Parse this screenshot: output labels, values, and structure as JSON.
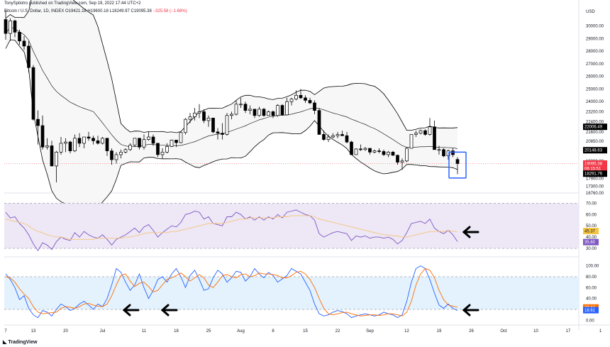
{
  "header": {
    "published": "TonySpilotro published on TradingView.com, Sep 19, 2022 17:44 UTC+2",
    "symbol": "Bitcoin / U.S. Dollar, 1D, INDEX",
    "open": "O19421.18",
    "high": "H19600.18",
    "low": "L18249.97",
    "close": "C19095.38",
    "change": "−325.58 (−1.68%)"
  },
  "footer": {
    "brand": "TradingView"
  },
  "colors": {
    "candle": "#000000",
    "band_fill": "#f7f7f7",
    "rsi_bg": "#ede7f6",
    "rsi_line": "#7e57c2",
    "rsi_ma": "#f5c57a",
    "stoch_bg": "#e3f2fd",
    "stoch_k": "#2962ff",
    "stoch_d": "#ff6d00",
    "highlight_box": "#2962ff",
    "price_label_red": "#f23645"
  },
  "chart_data": [
    {
      "type": "candlestick",
      "title": "Bitcoin / U.S. Dollar, 1D, INDEX",
      "y_axis_label": "USD",
      "y_ticks": [
        30000.0,
        29000.0,
        28000.0,
        27000.0,
        26000.0,
        25000.0,
        24000.0,
        23200.0,
        22400.0,
        21600.0,
        20850.0,
        20100.0,
        19300.0,
        18600.0,
        17900.0,
        17300.0,
        16760.0
      ],
      "ylim": [
        16760,
        31600
      ],
      "x_ticks": [
        "7",
        "13",
        "20",
        "Jul",
        "11",
        "18",
        "25",
        "Aug",
        "8",
        "15",
        "22",
        "Sep",
        "12",
        "19",
        "26",
        "Oct",
        "10",
        "17",
        "1"
      ],
      "price_labels": {
        "upper_band": "22006.49",
        "middle_band": "20148.63",
        "last": "19095.38",
        "countdown": "06:15:51",
        "lower_band": "18291.76"
      },
      "ohlc_daily_approx": [
        [
          30500,
          31200,
          28900,
          29400
        ],
        [
          29400,
          30600,
          28800,
          30400
        ],
        [
          30400,
          30500,
          29100,
          29500
        ],
        [
          29500,
          29700,
          28500,
          28800
        ],
        [
          28800,
          29200,
          28100,
          28400
        ],
        [
          28400,
          28800,
          26300,
          26700
        ],
        [
          26700,
          26900,
          22500,
          22600
        ],
        [
          22600,
          23300,
          20600,
          22100
        ],
        [
          22100,
          22900,
          20200,
          20400
        ],
        [
          20400,
          21100,
          20200,
          20500
        ],
        [
          20500,
          20900,
          18900,
          18900
        ],
        [
          18900,
          20100,
          17600,
          20000
        ],
        [
          20000,
          21200,
          19800,
          20700
        ],
        [
          20700,
          21100,
          20000,
          20800
        ],
        [
          20800,
          20900,
          19900,
          20100
        ],
        [
          20100,
          21400,
          20000,
          21100
        ],
        [
          21100,
          21500,
          20400,
          20700
        ],
        [
          20700,
          21200,
          20300,
          21200
        ],
        [
          21200,
          21600,
          20900,
          21100
        ],
        [
          21100,
          21300,
          20600,
          20900
        ],
        [
          20900,
          21300,
          20600,
          20700
        ],
        [
          20700,
          21200,
          20600,
          21100
        ],
        [
          21100,
          20900,
          19700,
          20100
        ],
        [
          20100,
          20300,
          19000,
          19400
        ],
        [
          19400,
          20000,
          19100,
          19800
        ],
        [
          19800,
          20200,
          19500,
          20000
        ],
        [
          20000,
          20300,
          19900,
          20200
        ],
        [
          20200,
          20700,
          20100,
          20550
        ],
        [
          20550,
          21100,
          20400,
          21100
        ],
        [
          21100,
          21100,
          20200,
          20400
        ],
        [
          20400,
          21400,
          20200,
          21000
        ],
        [
          21000,
          21600,
          20900,
          21200
        ],
        [
          21200,
          21400,
          20500,
          20700
        ],
        [
          20700,
          20700,
          19600,
          19800
        ],
        [
          19800,
          20300,
          19500,
          20000
        ],
        [
          20000,
          20700,
          19900,
          20450
        ],
        [
          20450,
          21000,
          20400,
          20950
        ],
        [
          20950,
          20900,
          20400,
          20750
        ],
        [
          20750,
          21600,
          20700,
          21550
        ],
        [
          21550,
          22700,
          21400,
          22600
        ],
        [
          22600,
          23100,
          22300,
          22800
        ],
        [
          22800,
          23500,
          22500,
          23100
        ],
        [
          23100,
          23800,
          22700,
          23200
        ],
        [
          23200,
          23400,
          22300,
          22500
        ],
        [
          22500,
          22900,
          22000,
          22700
        ],
        [
          22700,
          22700,
          21500,
          21600
        ],
        [
          21600,
          21900,
          21000,
          21500
        ],
        [
          21500,
          22300,
          21000,
          21400
        ],
        [
          21400,
          23100,
          21300,
          22900
        ],
        [
          22900,
          23200,
          22600,
          23000
        ],
        [
          23000,
          24100,
          22900,
          23800
        ],
        [
          23800,
          24300,
          23500,
          23800
        ],
        [
          23800,
          24000,
          23100,
          23300
        ],
        [
          23300,
          23700,
          23000,
          23400
        ],
        [
          23400,
          23400,
          22700,
          22900
        ],
        [
          22900,
          23600,
          22800,
          23400
        ],
        [
          23400,
          23500,
          22800,
          22900
        ],
        [
          22900,
          23300,
          22900,
          23200
        ],
        [
          23200,
          23300,
          22700,
          22900
        ],
        [
          22900,
          23800,
          22800,
          23700
        ],
        [
          23700,
          23800,
          22900,
          22950
        ],
        [
          22950,
          24300,
          22900,
          24000
        ],
        [
          24000,
          24300,
          23700,
          24200
        ],
        [
          24200,
          24900,
          24100,
          24500
        ],
        [
          24500,
          25000,
          24200,
          24300
        ],
        [
          24300,
          24500,
          23900,
          24100
        ],
        [
          24100,
          24300,
          23800,
          23900
        ],
        [
          23900,
          24100,
          23000,
          23300
        ],
        [
          23300,
          23500,
          21500,
          21400
        ],
        [
          21400,
          21700,
          20900,
          21000
        ],
        [
          21000,
          21400,
          20800,
          21200
        ],
        [
          21200,
          21500,
          21100,
          21300
        ],
        [
          21300,
          21600,
          21100,
          21400
        ],
        [
          21400,
          21700,
          21300,
          21300
        ],
        [
          21300,
          21600,
          20700,
          20800
        ],
        [
          20800,
          20900,
          19800,
          19800
        ],
        [
          19800,
          20300,
          19800,
          20250
        ],
        [
          20250,
          20600,
          20100,
          20200
        ],
        [
          20200,
          20400,
          20100,
          20300
        ],
        [
          20300,
          20300,
          19800,
          20000
        ],
        [
          20000,
          20200,
          19900,
          20100
        ],
        [
          20100,
          20300,
          19900,
          20050
        ],
        [
          20050,
          20200,
          19700,
          19800
        ],
        [
          19800,
          20100,
          19600,
          20000
        ],
        [
          20000,
          20100,
          19700,
          19750
        ],
        [
          19750,
          19800,
          19000,
          19200
        ],
        [
          19200,
          19500,
          18600,
          19300
        ],
        [
          19300,
          20400,
          19200,
          20300
        ],
        [
          20300,
          21400,
          20300,
          21400
        ],
        [
          21400,
          21700,
          21200,
          21500
        ],
        [
          21500,
          21800,
          21400,
          21700
        ],
        [
          21700,
          21800,
          21300,
          21400
        ],
        [
          21400,
          22700,
          21300,
          22000
        ],
        [
          22000,
          22500,
          20600,
          20200
        ],
        [
          20200,
          20500,
          19800,
          20200
        ],
        [
          20200,
          20300,
          19600,
          19700
        ],
        [
          19700,
          20200,
          19400,
          20100
        ],
        [
          20100,
          20300,
          19600,
          19800
        ],
        [
          19421,
          19600,
          18250,
          19095
        ]
      ]
    },
    {
      "type": "line",
      "title": "RSI",
      "y_ticks": [
        70.0,
        60.0,
        50.0,
        40.0,
        30.0
      ],
      "ylim": [
        25,
        74
      ],
      "labels": {
        "ma": "45.37",
        "rsi": "35.60"
      },
      "series": [
        {
          "values": [
            62,
            57,
            58,
            52,
            48,
            42,
            34,
            28,
            35,
            33,
            29,
            36,
            40,
            38,
            37,
            44,
            40,
            45,
            42,
            40,
            39,
            42,
            38,
            33,
            38,
            40,
            42,
            45,
            48,
            44,
            49,
            51,
            46,
            40,
            44,
            47,
            50,
            49,
            53,
            60,
            61,
            63,
            62,
            56,
            58,
            52,
            51,
            50,
            58,
            58,
            62,
            60,
            56,
            58,
            55,
            58,
            55,
            58,
            56,
            60,
            57,
            62,
            63,
            64,
            62,
            60,
            59,
            55,
            43,
            40,
            42,
            44,
            45,
            44,
            43,
            37,
            41,
            40,
            41,
            39,
            40,
            40,
            39,
            40,
            38,
            34,
            37,
            44,
            52,
            53,
            54,
            52,
            56,
            48,
            45,
            43,
            46,
            42,
            36
          ]
        },
        {
          "values": [
            56,
            55,
            54,
            53,
            52,
            50,
            47,
            45,
            44,
            42,
            41,
            40,
            40,
            39,
            38,
            38,
            38,
            38,
            38,
            38,
            39,
            39,
            39,
            39,
            39,
            39,
            40,
            40,
            41,
            42,
            43,
            44,
            44,
            44,
            44,
            44,
            45,
            45,
            46,
            47,
            48,
            49,
            50,
            51,
            52,
            52,
            52,
            52,
            53,
            54,
            55,
            56,
            56,
            57,
            57,
            57,
            57,
            57,
            57,
            58,
            58,
            58,
            59,
            59,
            59,
            59,
            59,
            58,
            56,
            55,
            54,
            53,
            52,
            51,
            50,
            49,
            48,
            47,
            46,
            45,
            44,
            43,
            42,
            42,
            41,
            41,
            40,
            40,
            41,
            42,
            43,
            44,
            45,
            45,
            45,
            45,
            46,
            45,
            45
          ]
        }
      ]
    },
    {
      "type": "line",
      "title": "Stochastic",
      "y_ticks": [
        100.0,
        80.0,
        60.0,
        40.0,
        20.0,
        0.0
      ],
      "ylim": [
        -6,
        106
      ],
      "labels": {
        "d": "23.63",
        "k": "18.61"
      },
      "series": [
        {
          "values": [
            85,
            75,
            60,
            38,
            45,
            22,
            10,
            5,
            18,
            15,
            8,
            20,
            30,
            25,
            18,
            22,
            30,
            35,
            28,
            20,
            30,
            25,
            40,
            65,
            95,
            88,
            70,
            55,
            65,
            85,
            60,
            40,
            55,
            75,
            80,
            70,
            85,
            95,
            80,
            60,
            82,
            92,
            75,
            55,
            58,
            78,
            92,
            85,
            70,
            78,
            90,
            88,
            72,
            80,
            95,
            85,
            78,
            88,
            82,
            70,
            76,
            82,
            95,
            90,
            85,
            70,
            55,
            30,
            12,
            8,
            10,
            15,
            18,
            16,
            12,
            5,
            8,
            10,
            12,
            10,
            8,
            10,
            15,
            12,
            10,
            5,
            10,
            35,
            70,
            95,
            100,
            95,
            75,
            50,
            28,
            22,
            30,
            22,
            18
          ]
        },
        {
          "values": [
            80,
            78,
            70,
            58,
            48,
            40,
            25,
            15,
            12,
            13,
            14,
            15,
            22,
            25,
            24,
            22,
            25,
            30,
            31,
            28,
            26,
            25,
            30,
            45,
            65,
            82,
            85,
            72,
            62,
            68,
            70,
            62,
            52,
            55,
            65,
            75,
            78,
            82,
            87,
            80,
            72,
            78,
            84,
            78,
            65,
            60,
            70,
            82,
            84,
            80,
            78,
            84,
            85,
            80,
            82,
            87,
            85,
            85,
            84,
            82,
            78,
            78,
            82,
            88,
            90,
            85,
            75,
            60,
            40,
            22,
            12,
            10,
            12,
            14,
            15,
            12,
            10,
            8,
            9,
            10,
            10,
            9,
            10,
            12,
            12,
            10,
            8,
            15,
            35,
            65,
            85,
            95,
            92,
            78,
            55,
            38,
            28,
            26,
            24
          ]
        }
      ]
    }
  ]
}
